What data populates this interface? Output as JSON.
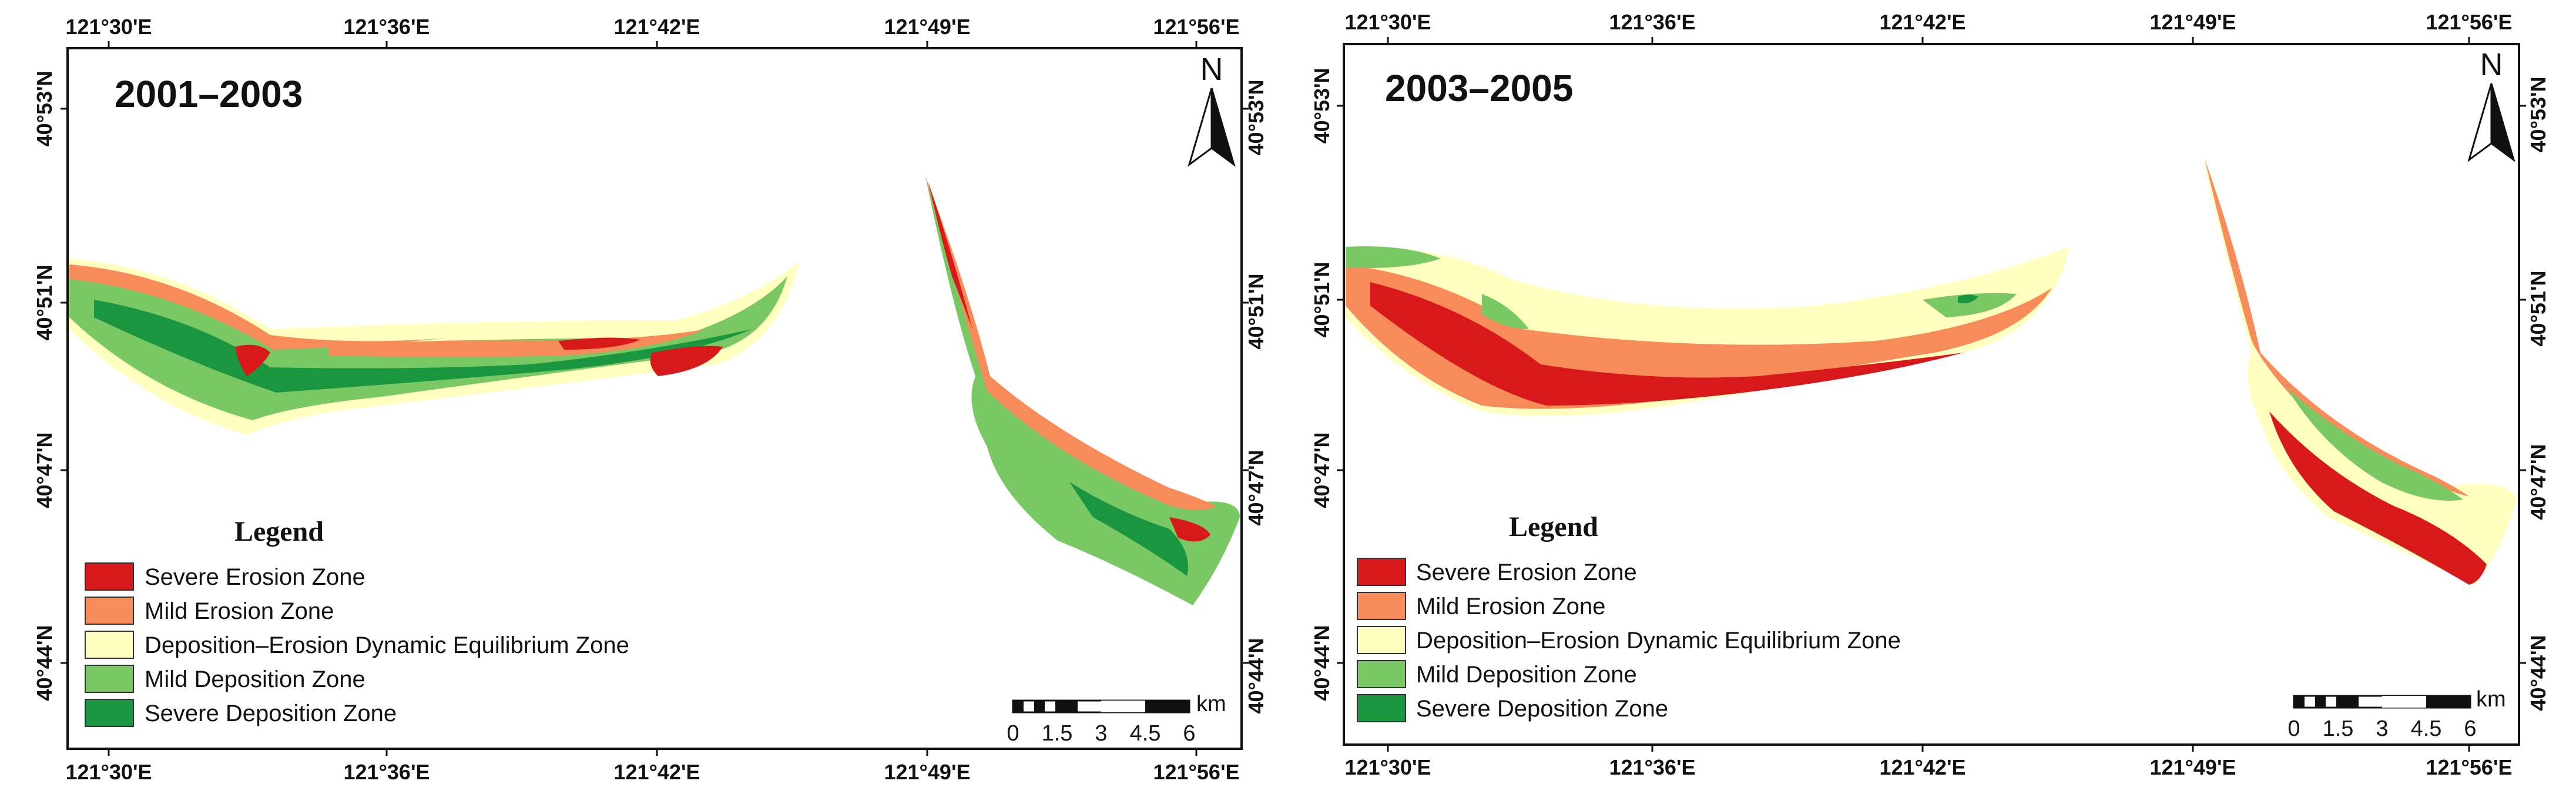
{
  "colors": {
    "severe_erosion": "#d7191c",
    "mild_erosion": "#f88b5a",
    "equilibrium": "#ffffc0",
    "mild_deposition": "#7ac864",
    "severe_deposition": "#1a9641"
  },
  "legend": {
    "title": "Legend",
    "items": [
      {
        "label": "Severe Erosion Zone",
        "color": "#d7191c"
      },
      {
        "label": "Mild Erosion Zone",
        "color": "#f88b5a"
      },
      {
        "label": "Deposition–Erosion Dynamic Equilibrium Zone",
        "color": "#ffffc0"
      },
      {
        "label": "Mild Deposition Zone",
        "color": "#7ac864"
      },
      {
        "label": "Severe Deposition Zone",
        "color": "#1a9641"
      }
    ]
  },
  "axes": {
    "longitude_ticks": [
      "121°30'E",
      "121°36'E",
      "121°42'E",
      "121°49'E",
      "121°56'E"
    ],
    "latitude_ticks": [
      "40°53'N",
      "40°51'N",
      "40°47'N",
      "40°44'N"
    ]
  },
  "north_arrow": {
    "letter": "N"
  },
  "scale_bar": {
    "unit": "km",
    "labels": [
      "0",
      "1.5",
      "3",
      "4.5",
      "6"
    ]
  },
  "panels": [
    {
      "title": "2001–2003"
    },
    {
      "title": "2003–2005"
    }
  ]
}
